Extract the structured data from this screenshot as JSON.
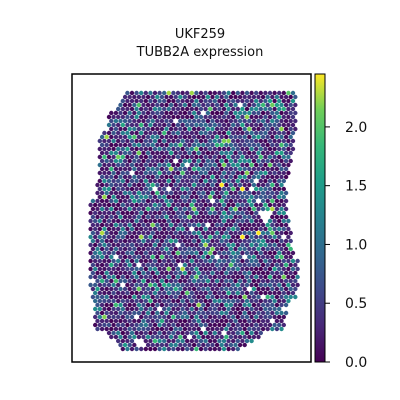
{
  "chart_data": {
    "type": "heatmap",
    "subtype": "spatial-transcriptomics-spot-map",
    "title_line1": "UKF259",
    "title_line2": "TUBB2A expression",
    "xlabel": "",
    "ylabel": "",
    "colorbar": {
      "colormap": "viridis",
      "range": [
        0.0,
        2.45
      ],
      "ticks": [
        {
          "value": 0.0,
          "label": "0.0"
        },
        {
          "value": 0.5,
          "label": "0.5"
        },
        {
          "value": 1.0,
          "label": "1.0"
        },
        {
          "value": 1.5,
          "label": "1.5"
        },
        {
          "value": 2.0,
          "label": "2.0"
        }
      ]
    },
    "spots": {
      "description_values": "Per-spot expression values are not individually readable; most spots are in the 0.0–1.0 range with sparse higher values up to ~2.3.",
      "typical_range": [
        0.0,
        1.2
      ],
      "max_observed": 2.3
    },
    "colors": {
      "viridis_low": "#440154",
      "viridis_mid_low": "#3b528b",
      "viridis_mid": "#21918c",
      "viridis_mid_high": "#5ec962",
      "viridis_high": "#fde725"
    }
  }
}
